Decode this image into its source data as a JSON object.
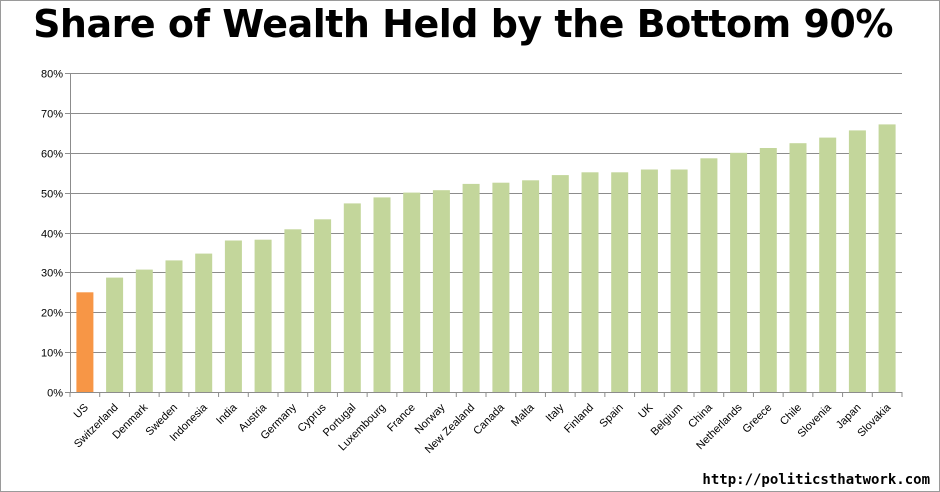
{
  "chart_data": {
    "type": "bar",
    "title": "Share of Wealth Held by the Bottom 90%",
    "categories": [
      "US",
      "Switzerland",
      "Denmark",
      "Sweden",
      "Indonesia",
      "India",
      "Austria",
      "Germany",
      "Cyprus",
      "Portugal",
      "Luxembourg",
      "France",
      "Norway",
      "New Zealand",
      "Canada",
      "Malta",
      "Italy",
      "Finland",
      "Spain",
      "UK",
      "Belgium",
      "China",
      "Netherlands",
      "Greece",
      "Chile",
      "Slovenia",
      "Japan",
      "Slovakia"
    ],
    "values": [
      25,
      28.7,
      30.7,
      33,
      34.7,
      38,
      38.2,
      40.8,
      43.3,
      47.3,
      48.8,
      50,
      50.6,
      52.2,
      52.5,
      53.1,
      54.4,
      55.1,
      55.1,
      55.8,
      55.8,
      58.6,
      60,
      61.2,
      62.4,
      63.8,
      65.6,
      67.1
    ],
    "ylim": [
      0,
      80
    ],
    "yticks": [
      "0%",
      "10%",
      "20%",
      "30%",
      "40%",
      "50%",
      "60%",
      "70%",
      "80%"
    ],
    "grid": true,
    "colors": {
      "highlight": "#F79646",
      "default": "#C3D69B",
      "grid": "#8c8c8c"
    },
    "highlight_category": "US"
  },
  "source": "http://politicsthatwork.com"
}
